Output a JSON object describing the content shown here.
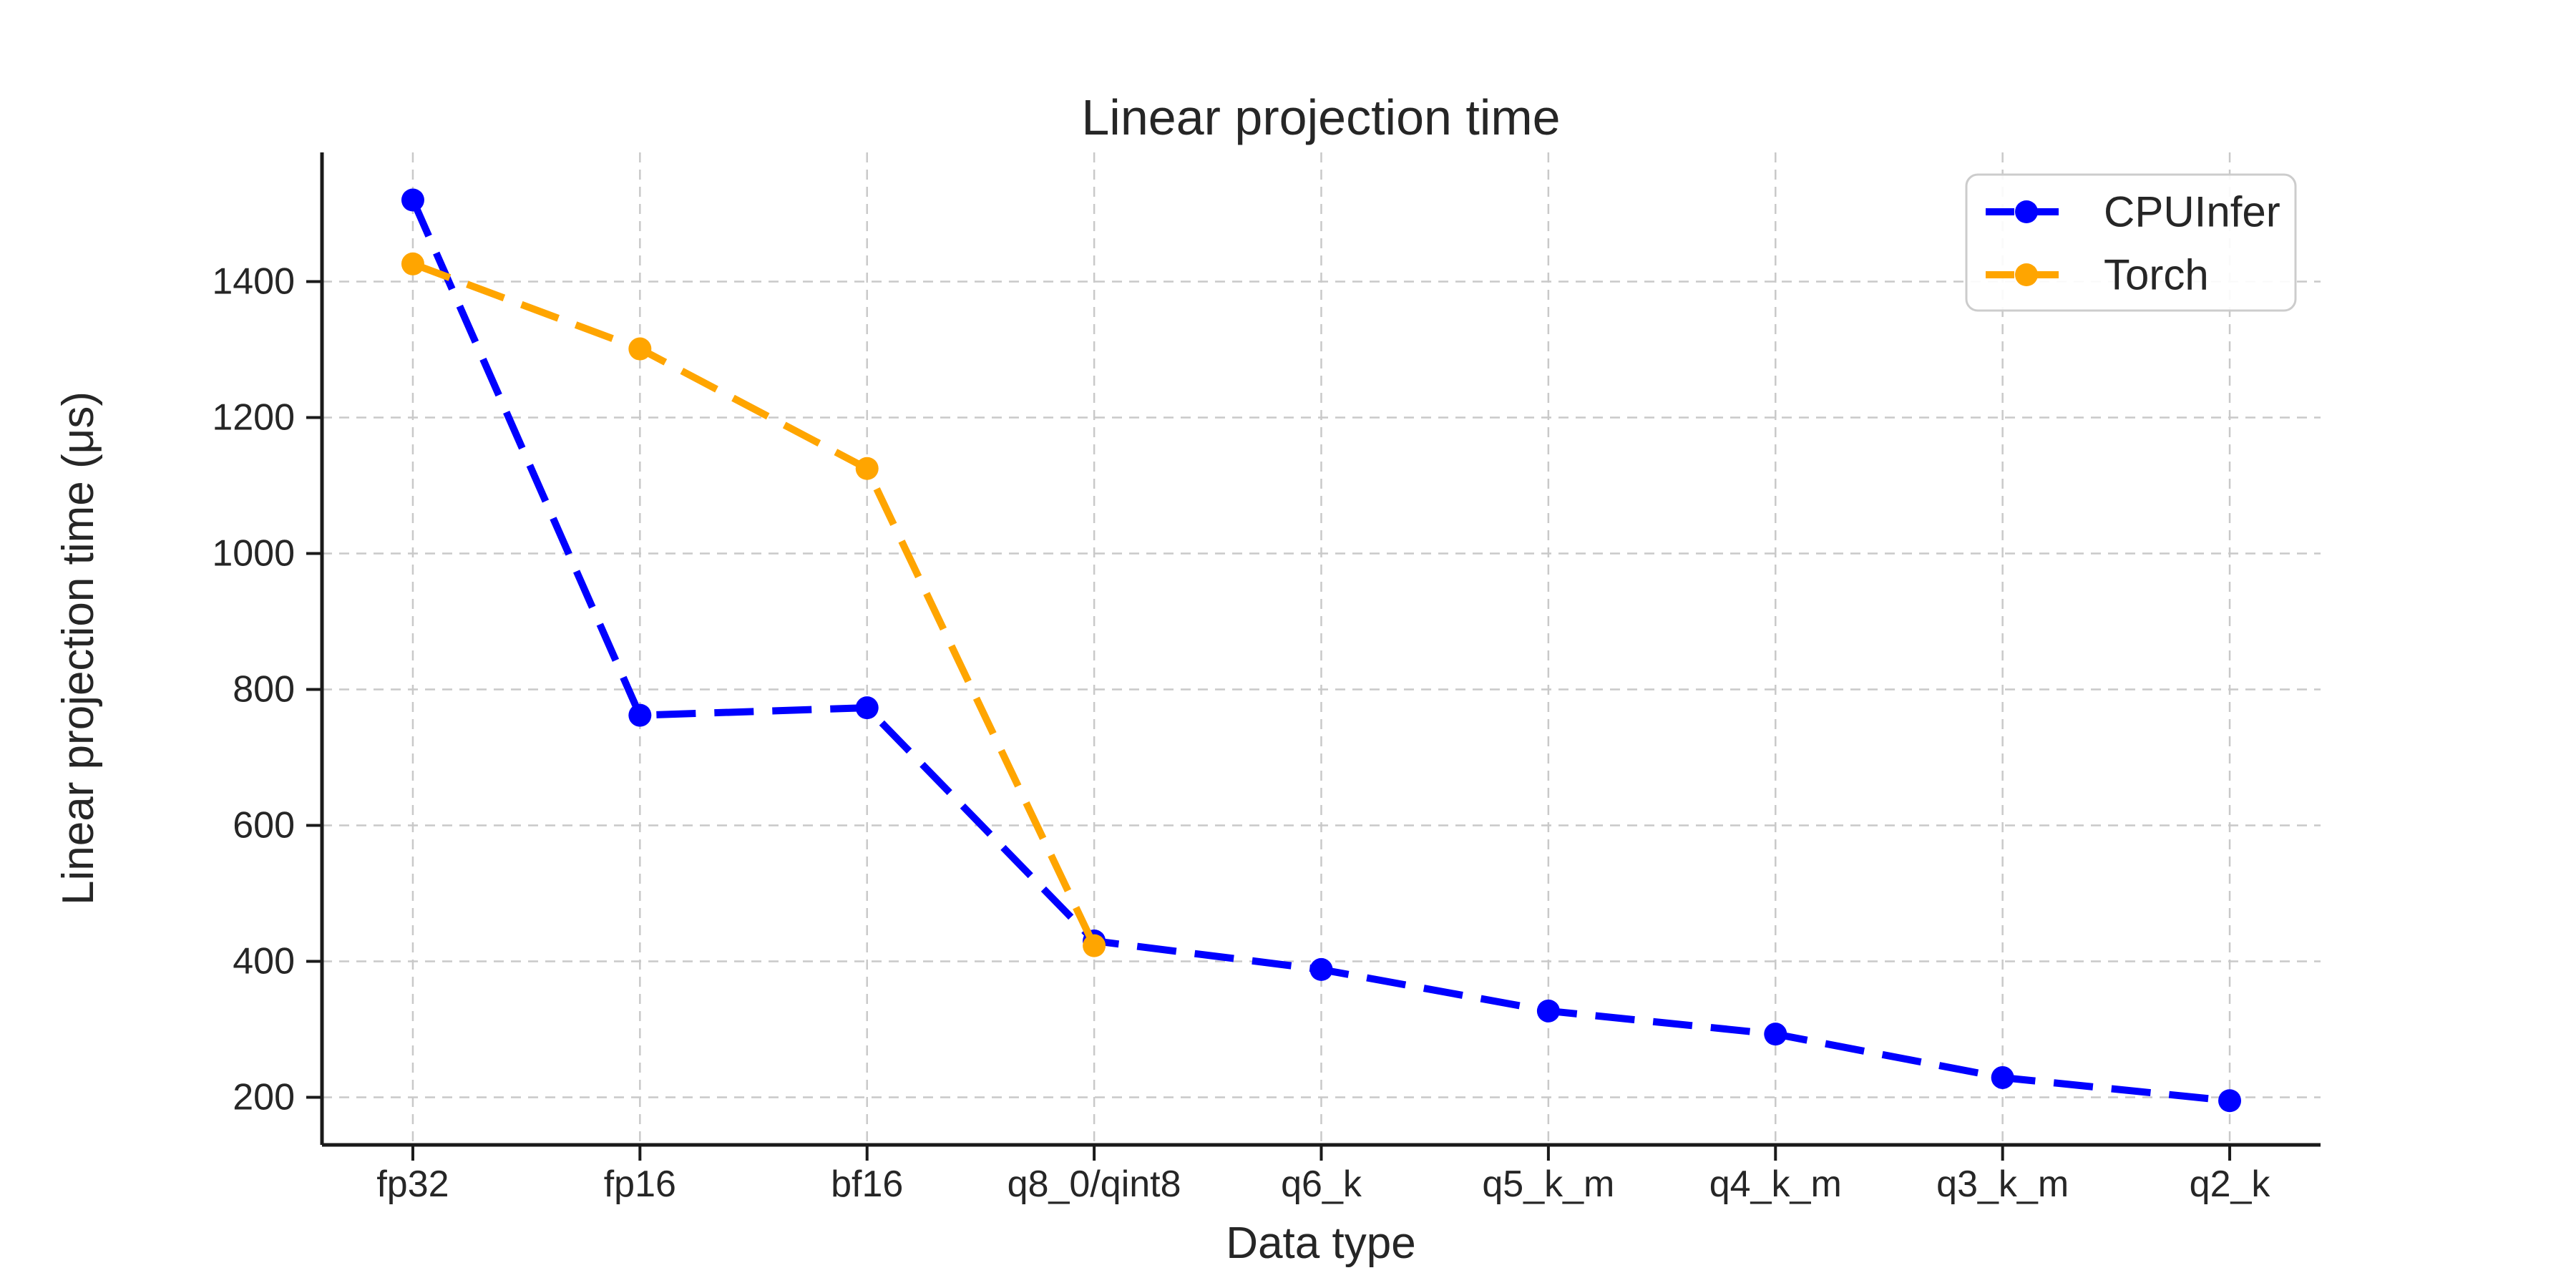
{
  "chart_data": {
    "type": "line",
    "title": "Linear projection time",
    "xlabel": "Data type",
    "ylabel": "Linear projection time (μs)",
    "categories": [
      "fp32",
      "fp16",
      "bf16",
      "q8_0/qint8",
      "q6_k",
      "q5_k_m",
      "q4_k_m",
      "q3_k_m",
      "q2_k"
    ],
    "series": [
      {
        "name": "CPUInfer",
        "color": "#0000ff",
        "values": [
          1520,
          762,
          773,
          430,
          388,
          327,
          293,
          229,
          195
        ]
      },
      {
        "name": "Torch",
        "color": "#ffa500",
        "values": [
          1426,
          1301,
          1125,
          423,
          null,
          null,
          null,
          null,
          null
        ]
      }
    ],
    "yticks": [
      200,
      400,
      600,
      800,
      1000,
      1200,
      1400
    ],
    "ylim": [
      130,
      1590
    ],
    "grid": "dashed-both-axes",
    "line_style": "dashed",
    "marker": "circle",
    "legend_position": "top-right",
    "colors": {
      "background": "#ffffff",
      "axis": "#1a1a1a",
      "text": "#262626",
      "gridline": "#c9c9c9",
      "legend_border": "#cccccc"
    }
  }
}
